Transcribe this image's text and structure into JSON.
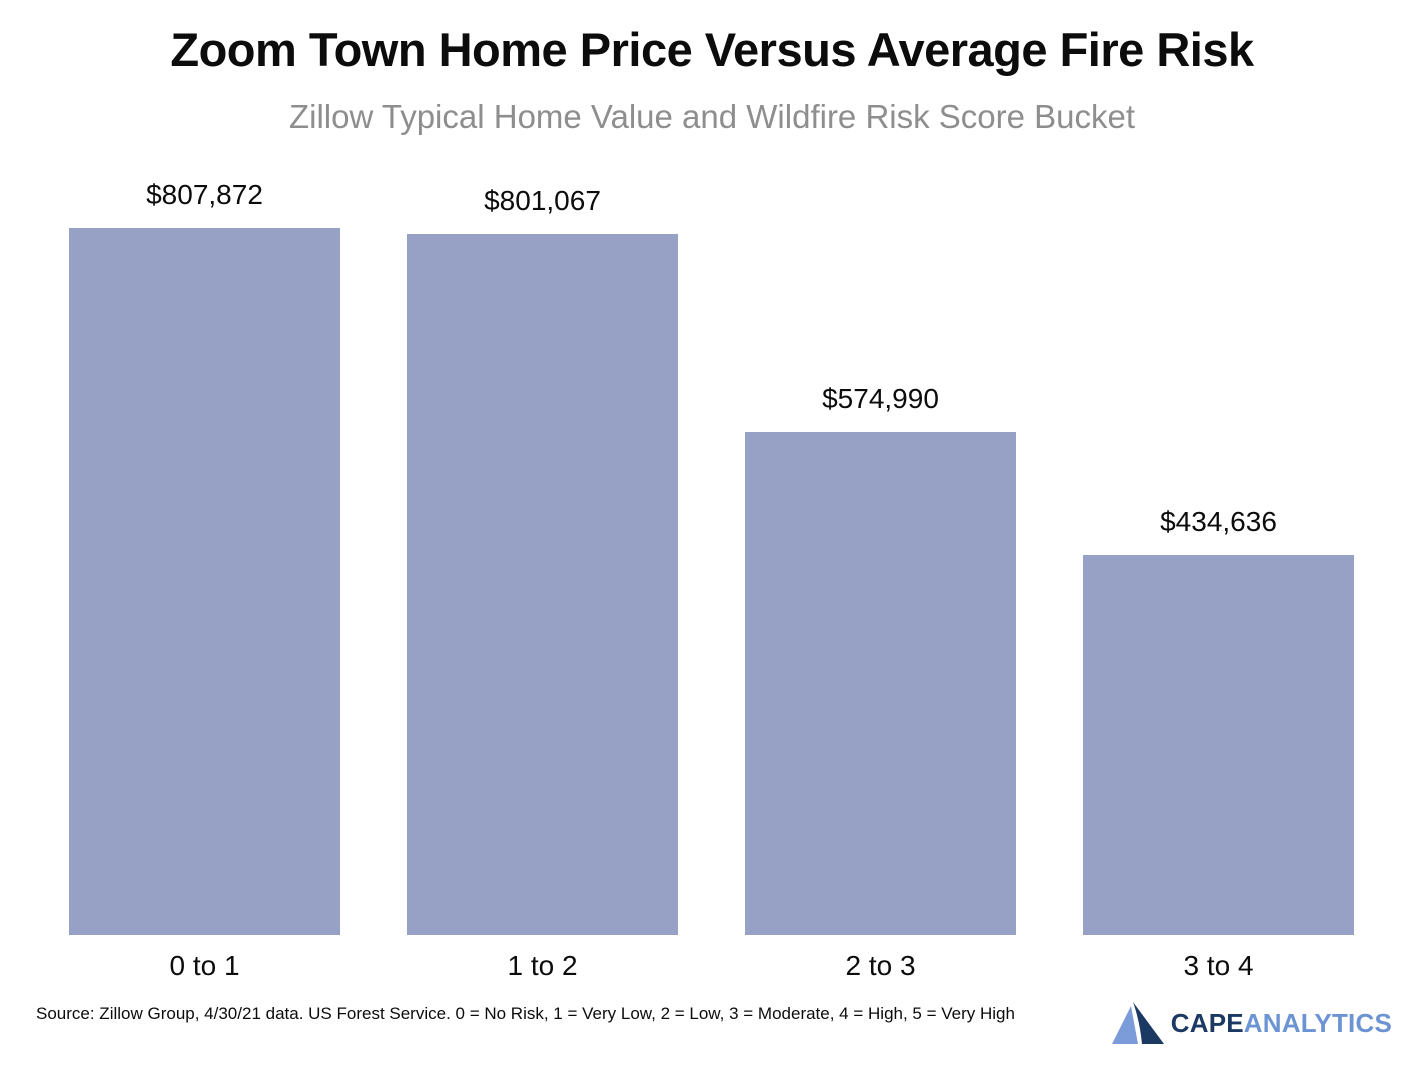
{
  "header": {
    "title": "Zoom Town Home Price Versus Average Fire Risk",
    "subtitle": "Zillow Typical Home Value and Wildfire Risk Score Bucket"
  },
  "chart_data": {
    "type": "bar",
    "categories": [
      "0 to 1",
      "1 to 2",
      "2 to 3",
      "3 to 4"
    ],
    "values": [
      807872,
      801067,
      574990,
      434636
    ],
    "value_labels": [
      "$807,872",
      "$801,067",
      "$574,990",
      "$434,636"
    ],
    "title": "Zoom Town Home Price Versus Average Fire Risk",
    "subtitle": "Zillow Typical Home Value and Wildfire Risk Score Bucket",
    "xlabel": "",
    "ylabel": "",
    "ylim": [
      0,
      807872
    ],
    "grid": false,
    "legend": false,
    "bar_color": "#97A1C6"
  },
  "footer": {
    "source": "Source: Zillow Group, 4/30/21 data. US Forest Service. 0 = No Risk, 1 = Very Low, 2 = Low, 3 = Moderate, 4 = High, 5 = Very High"
  },
  "logo": {
    "brand_primary": "CAPE",
    "brand_secondary": "ANALYTICS",
    "colors": {
      "primary_text": "#1B3962",
      "secondary_text": "#6C94D3",
      "triangle_light": "#7B9CD9",
      "triangle_dark": "#1B3962"
    }
  }
}
